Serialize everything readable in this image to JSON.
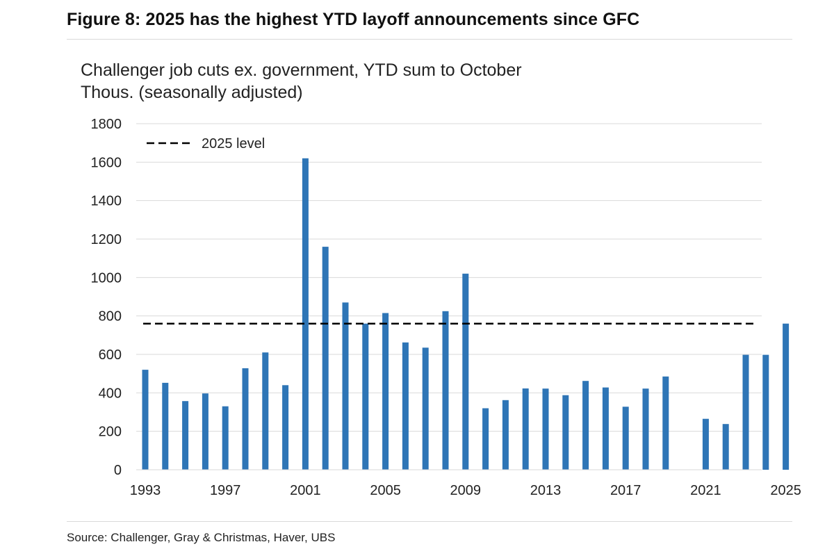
{
  "figure_title": "Figure 8: 2025 has the highest YTD layoff announcements since GFC",
  "subtitle_line1": "Challenger job cuts ex. government, YTD sum to October",
  "subtitle_line2": "Thous. (seasonally adjusted)",
  "source": "Source: Challenger, Gray & Christmas, Haver, UBS",
  "colors": {
    "bar": "#2e75b6",
    "gridline": "#d9d9d9",
    "reference_line": "#000000"
  },
  "chart_data": {
    "type": "bar",
    "categories": [
      "1993",
      "1994",
      "1995",
      "1996",
      "1997",
      "1998",
      "1999",
      "2000",
      "2001",
      "2002",
      "2003",
      "2004",
      "2005",
      "2006",
      "2007",
      "2008",
      "2009",
      "2010",
      "2011",
      "2012",
      "2013",
      "2014",
      "2015",
      "2016",
      "2017",
      "2018",
      "2019",
      "2020",
      "2021",
      "2022",
      "2023",
      "2024",
      "2025"
    ],
    "values": [
      520,
      452,
      357,
      397,
      330,
      528,
      610,
      440,
      1620,
      1160,
      870,
      760,
      815,
      662,
      635,
      825,
      1020,
      320,
      362,
      423,
      422,
      388,
      462,
      428,
      328,
      422,
      485,
      null,
      265,
      238,
      598,
      598,
      760
    ],
    "x_tick_labels": [
      "1993",
      "1997",
      "2001",
      "2005",
      "2009",
      "2013",
      "2017",
      "2021",
      "2025"
    ],
    "y_ticks": [
      0,
      200,
      400,
      600,
      800,
      1000,
      1200,
      1400,
      1600,
      1800
    ],
    "ylim": [
      0,
      1800
    ],
    "grid": true,
    "legend_position": "top-left",
    "reference_line": {
      "label": "2025 level",
      "value": 760,
      "style": "dashed"
    }
  }
}
